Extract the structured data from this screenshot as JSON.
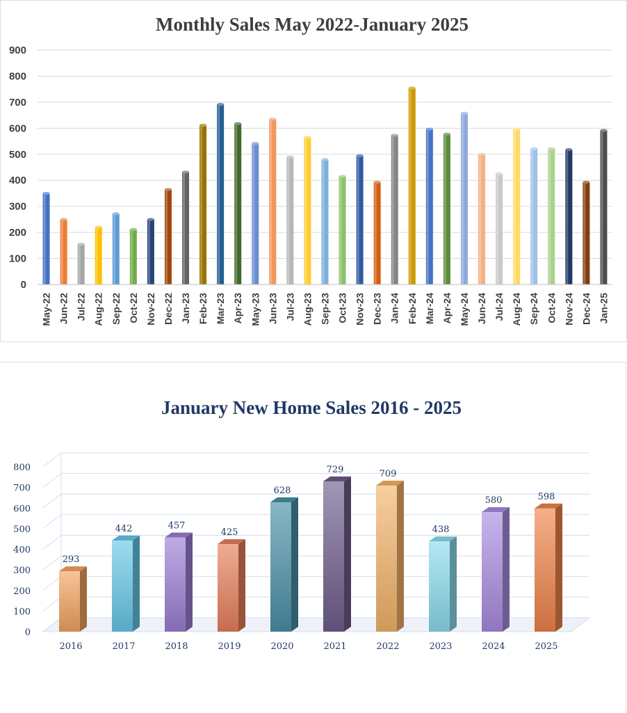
{
  "chart_data": [
    {
      "type": "bar",
      "title": "Monthly Sales May 2022-January 2025",
      "xlabel": "",
      "ylabel": "",
      "ylim": [
        0,
        900
      ],
      "yticks": [
        "0",
        "100",
        "200",
        "300",
        "400",
        "500",
        "600",
        "700",
        "800",
        "900"
      ],
      "grid": true,
      "categories": [
        "May-22",
        "Jun-22",
        "Jul-22",
        "Aug-22",
        "Sep-22",
        "Oct-22",
        "Nov-22",
        "Dec-22",
        "Jan-23",
        "Feb-23",
        "Mar-23",
        "Apr-23",
        "May-23",
        "Jun-23",
        "Jul-23",
        "Aug-23",
        "Sep-23",
        "Oct-23",
        "Nov-23",
        "Dec-23",
        "Jan-24",
        "Feb-24",
        "Mar-24",
        "Apr-24",
        "May-24",
        "Jun-24",
        "Jul-24",
        "Aug-24",
        "Sep-24",
        "Oct-24",
        "Nov-24",
        "Dec-24",
        "Jan-25"
      ],
      "values": [
        350,
        250,
        155,
        220,
        272,
        212,
        250,
        365,
        432,
        612,
        692,
        618,
        542,
        635,
        490,
        565,
        480,
        415,
        495,
        393,
        573,
        755,
        597,
        578,
        658,
        500,
        426,
        597,
        522,
        522,
        518,
        393,
        592
      ],
      "colors": [
        "#4472c4",
        "#ed7d31",
        "#a5a5a5",
        "#ffc000",
        "#5b9bd5",
        "#70ad47",
        "#264478",
        "#9e480e",
        "#636363",
        "#997300",
        "#255e91",
        "#43682b",
        "#698ed0",
        "#f1975a",
        "#b7b7b7",
        "#ffcd33",
        "#7cafdd",
        "#8cc168",
        "#335aa1",
        "#d26012",
        "#848484",
        "#cc9a00",
        "#4472c4",
        "#5a8b39",
        "#8faadc",
        "#f4b183",
        "#c9c9c9",
        "#ffd966",
        "#9dc3e6",
        "#a9d18e",
        "#203864",
        "#843c0c",
        "#4d4d4d"
      ]
    },
    {
      "type": "bar",
      "title": "January New Home Sales 2016 - 2025",
      "xlabel": "",
      "ylabel": "",
      "ylim": [
        0,
        800
      ],
      "yticks": [
        "0",
        "100",
        "200",
        "300",
        "400",
        "500",
        "600",
        "700",
        "800"
      ],
      "grid": true,
      "categories": [
        "2016",
        "2017",
        "2018",
        "2019",
        "2020",
        "2021",
        "2022",
        "2023",
        "2024",
        "2025"
      ],
      "values": [
        293,
        442,
        457,
        425,
        628,
        729,
        709,
        438,
        580,
        598
      ],
      "colors": [
        "#f4a460",
        "#66c8e8",
        "#9b7fd4",
        "#e8805a",
        "#4a90a8",
        "#6e5d8c",
        "#f4b46a",
        "#8cdcee",
        "#a98ce0",
        "#f0844a"
      ]
    }
  ]
}
